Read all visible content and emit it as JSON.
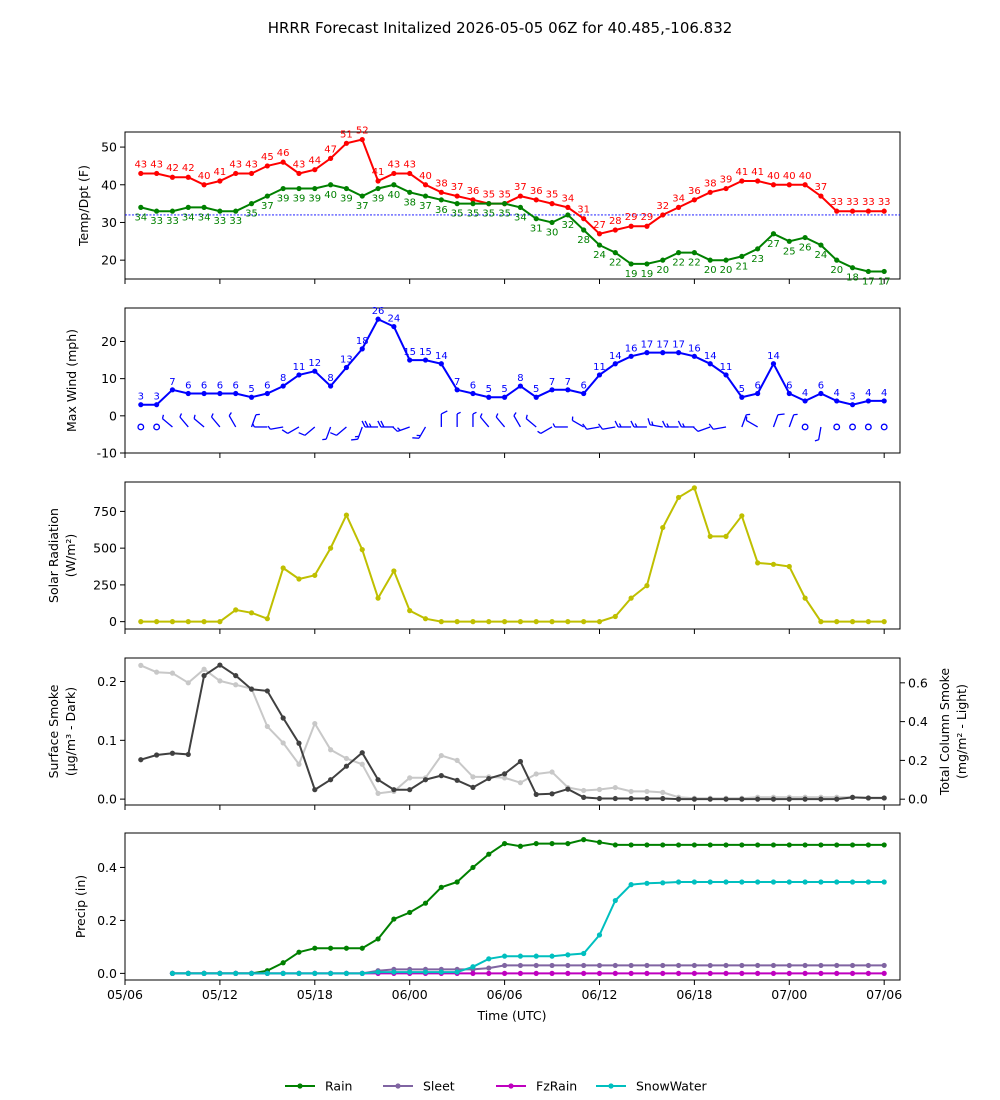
{
  "title": "HRRR Forecast Initalized 2026-05-05 06Z for 40.485,-106.832",
  "x_tick_labels": [
    "05/06",
    "05/12",
    "05/18",
    "06/00",
    "06/06",
    "06/12",
    "06/18",
    "07/00",
    "07/06"
  ],
  "x_axis_label": "Time (UTC)",
  "colors": {
    "temp": "#ff0000",
    "dewpoint": "#008000",
    "wind": "#0000ff",
    "solar": "#bfbf00",
    "smoke_dark": "#404040",
    "smoke_light": "#c8c8c8",
    "rain": "#008000",
    "sleet": "#8064a2",
    "fzrain": "#bf00bf",
    "snow": "#00bfbf"
  },
  "chart_data": [
    {
      "type": "line",
      "name": "temp-dewpoint",
      "ylabel": "Temp/Dpt (F)",
      "ylim": [
        15,
        54
      ],
      "yticks": [
        20,
        30,
        40,
        50
      ],
      "x_hours": [
        1,
        2,
        3,
        4,
        5,
        6,
        7,
        8,
        9,
        10,
        11,
        12,
        13,
        14,
        15,
        16,
        17,
        18,
        19,
        20,
        21,
        22,
        23,
        24,
        25,
        26,
        27,
        28,
        29,
        30,
        31,
        32,
        33,
        34,
        35,
        36,
        37,
        38,
        39,
        40,
        41,
        42,
        43,
        44,
        45,
        46,
        47,
        48
      ],
      "reference_line": 32,
      "series": [
        {
          "name": "Temp",
          "values": [
            43,
            43,
            42,
            42,
            40,
            41,
            43,
            43,
            45,
            46,
            43,
            44,
            47,
            51,
            52,
            41,
            43,
            43,
            40,
            38,
            37,
            36,
            35,
            35,
            37,
            36,
            35,
            34,
            31,
            27,
            28,
            29,
            29,
            32,
            34,
            36,
            38,
            39,
            41,
            41,
            40,
            40,
            40,
            37,
            33,
            33,
            33,
            33
          ]
        },
        {
          "name": "Dewpoint",
          "values": [
            34,
            33,
            33,
            34,
            34,
            33,
            33,
            35,
            37,
            39,
            39,
            39,
            40,
            39,
            37,
            39,
            40,
            38,
            37,
            36,
            35,
            35,
            35,
            35,
            34,
            31,
            30,
            32,
            28,
            24,
            22,
            19,
            19,
            20,
            22,
            22,
            20,
            20,
            21,
            23,
            27,
            25,
            26,
            24,
            20,
            18,
            17,
            17
          ]
        }
      ]
    },
    {
      "type": "line",
      "name": "max-wind",
      "ylabel": "Max Wind (mph)",
      "ylim": [
        -10,
        29
      ],
      "yticks": [
        -10,
        0,
        10,
        20
      ],
      "x_hours": [
        1,
        2,
        3,
        4,
        5,
        6,
        7,
        8,
        9,
        10,
        11,
        12,
        13,
        14,
        15,
        16,
        17,
        18,
        19,
        20,
        21,
        22,
        23,
        24,
        25,
        26,
        27,
        28,
        29,
        30,
        31,
        32,
        33,
        34,
        35,
        36,
        37,
        38,
        39,
        40,
        41,
        42,
        43,
        44,
        45,
        46,
        47,
        48
      ],
      "values": [
        3,
        3,
        7,
        6,
        6,
        6,
        6,
        5,
        6,
        8,
        11,
        12,
        8,
        13,
        18,
        26,
        24,
        15,
        15,
        14,
        7,
        6,
        5,
        5,
        8,
        5,
        7,
        7,
        6,
        11,
        14,
        16,
        17,
        17,
        17,
        16,
        14,
        11,
        5,
        6,
        14,
        6,
        4,
        6,
        4,
        3,
        4,
        4
      ],
      "barb_directions_deg": [
        20,
        300,
        310,
        320,
        310,
        320,
        330,
        20,
        270,
        260,
        240,
        230,
        200,
        230,
        200,
        270,
        270,
        250,
        210,
        0,
        0,
        0,
        320,
        320,
        330,
        310,
        240,
        270,
        300,
        260,
        260,
        270,
        270,
        280,
        270,
        270,
        250,
        260,
        20,
        300,
        20,
        20,
        210,
        190,
        280,
        230,
        20,
        20
      ]
    },
    {
      "type": "line",
      "name": "solar-radiation",
      "ylabel": "Solar Radiation",
      "ylabel_unit": "(W/m²)",
      "ylim": [
        -50,
        950
      ],
      "yticks": [
        0,
        250,
        500,
        750
      ],
      "x_hours": [
        1,
        2,
        3,
        4,
        5,
        6,
        7,
        8,
        9,
        10,
        11,
        12,
        13,
        14,
        15,
        16,
        17,
        18,
        19,
        20,
        21,
        22,
        23,
        24,
        25,
        26,
        27,
        28,
        29,
        30,
        31,
        32,
        33,
        34,
        35,
        36,
        37,
        38,
        39,
        40,
        41,
        42,
        43,
        44,
        45,
        46,
        47,
        48
      ],
      "values": [
        0,
        0,
        0,
        0,
        0,
        0,
        80,
        60,
        20,
        365,
        290,
        315,
        500,
        725,
        490,
        160,
        345,
        75,
        20,
        0,
        0,
        0,
        0,
        0,
        0,
        0,
        0,
        0,
        0,
        0,
        35,
        160,
        245,
        640,
        845,
        910,
        580,
        580,
        720,
        400,
        390,
        375,
        160,
        0,
        0,
        0,
        0,
        0
      ]
    },
    {
      "type": "line",
      "name": "smoke",
      "ylabel": "Surface Smoke",
      "ylabel_unit": "(μg/m³ - Dark)",
      "y2label": "Total Column Smoke",
      "y2label_unit": "(mg/m² - Light)",
      "ylim": [
        -0.01,
        0.24
      ],
      "yticks": [
        0.0,
        0.1,
        0.2
      ],
      "y2lim": [
        -0.03,
        0.728
      ],
      "y2ticks": [
        0.0,
        0.2,
        0.4,
        0.6
      ],
      "x_hours": [
        1,
        2,
        3,
        4,
        5,
        6,
        7,
        8,
        9,
        10,
        11,
        12,
        13,
        14,
        15,
        16,
        17,
        18,
        19,
        20,
        21,
        22,
        23,
        24,
        25,
        26,
        27,
        28,
        29,
        30,
        31,
        32,
        33,
        34,
        35,
        36,
        37,
        38,
        39,
        40,
        41,
        42,
        43,
        44,
        45,
        46,
        47,
        48
      ],
      "series": [
        {
          "name": "Surface Smoke",
          "values": [
            0.067,
            0.075,
            0.078,
            0.076,
            0.21,
            0.228,
            0.21,
            0.187,
            0.184,
            0.138,
            0.095,
            0.016,
            0.033,
            0.056,
            0.079,
            0.033,
            0.016,
            0.016,
            0.033,
            0.04,
            0.032,
            0.02,
            0.035,
            0.043,
            0.064,
            0.008,
            0.009,
            0.017,
            0.003,
            0.001,
            0.001,
            0.001,
            0.001,
            0.001,
            0.0,
            0.0,
            0.0,
            0.0,
            0.0,
            0.0,
            0.0,
            0.0,
            0.0,
            0.0,
            0.0,
            0.003,
            0.002,
            0.002
          ]
        },
        {
          "name": "Total Column Smoke",
          "values": [
            0.69,
            0.655,
            0.65,
            0.6,
            0.67,
            0.61,
            0.59,
            0.57,
            0.375,
            0.29,
            0.18,
            0.39,
            0.255,
            0.21,
            0.18,
            0.03,
            0.04,
            0.11,
            0.11,
            0.225,
            0.2,
            0.115,
            0.115,
            0.11,
            0.085,
            0.13,
            0.14,
            0.06,
            0.045,
            0.05,
            0.06,
            0.04,
            0.04,
            0.035,
            0.01,
            0.005,
            0.005,
            0.005,
            0.005,
            0.01,
            0.01,
            0.01,
            0.01,
            0.01,
            0.01,
            0.01,
            0.005,
            0.005
          ]
        }
      ]
    },
    {
      "type": "line",
      "name": "precip",
      "ylabel": "Precip (in)",
      "ylim": [
        -0.025,
        0.53
      ],
      "yticks": [
        0.0,
        0.2,
        0.4
      ],
      "x_hours": [
        3,
        4,
        5,
        6,
        7,
        8,
        9,
        10,
        11,
        12,
        13,
        14,
        15,
        16,
        17,
        18,
        19,
        20,
        21,
        22,
        23,
        24,
        25,
        26,
        27,
        28,
        29,
        30,
        31,
        32,
        33,
        34,
        35,
        36,
        37,
        38,
        39,
        40,
        41,
        42,
        43,
        44,
        45,
        46,
        47,
        48
      ],
      "series": [
        {
          "name": "Rain",
          "values": [
            0,
            0,
            0,
            0,
            0,
            0,
            0.01,
            0.04,
            0.08,
            0.095,
            0.095,
            0.095,
            0.095,
            0.13,
            0.205,
            0.23,
            0.265,
            0.325,
            0.345,
            0.4,
            0.45,
            0.49,
            0.48,
            0.49,
            0.49,
            0.49,
            0.505,
            0.495,
            0.485,
            0.485,
            0.485,
            0.485,
            0.485,
            0.485,
            0.485,
            0.485,
            0.485,
            0.485,
            0.485,
            0.485,
            0.485,
            0.485,
            0.485,
            0.485,
            0.485,
            0.485
          ]
        },
        {
          "name": "Sleet",
          "values": [
            0,
            0,
            0,
            0,
            0,
            0,
            0,
            0,
            0,
            0,
            0,
            0,
            0,
            0.01,
            0.015,
            0.015,
            0.015,
            0.015,
            0.015,
            0.015,
            0.02,
            0.03,
            0.03,
            0.03,
            0.03,
            0.03,
            0.03,
            0.03,
            0.03,
            0.03,
            0.03,
            0.03,
            0.03,
            0.03,
            0.03,
            0.03,
            0.03,
            0.03,
            0.03,
            0.03,
            0.03,
            0.03,
            0.03,
            0.03,
            0.03,
            0.03
          ]
        },
        {
          "name": "FzRain",
          "values": [
            0,
            0,
            0,
            0,
            0,
            0,
            0,
            0,
            0,
            0,
            0,
            0,
            0,
            0,
            0,
            0,
            0,
            0,
            0,
            0,
            0,
            0,
            0,
            0,
            0,
            0,
            0,
            0,
            0,
            0,
            0,
            0,
            0,
            0,
            0,
            0,
            0,
            0,
            0,
            0,
            0,
            0,
            0,
            0,
            0,
            0
          ]
        },
        {
          "name": "SnowWater",
          "values": [
            0,
            0,
            0,
            0,
            0,
            0,
            0,
            0,
            0,
            0,
            0,
            0,
            0,
            0.005,
            0.005,
            0.005,
            0.005,
            0.005,
            0.005,
            0.025,
            0.055,
            0.065,
            0.065,
            0.065,
            0.065,
            0.07,
            0.075,
            0.145,
            0.275,
            0.335,
            0.34,
            0.342,
            0.345,
            0.345,
            0.345,
            0.345,
            0.345,
            0.345,
            0.345,
            0.345,
            0.345,
            0.345,
            0.345,
            0.345,
            0.345,
            0.345
          ]
        }
      ]
    }
  ],
  "legend": {
    "placement": "bottom-center",
    "items": [
      {
        "label": "Rain",
        "color": "#008000"
      },
      {
        "label": "Sleet",
        "color": "#8064a2"
      },
      {
        "label": "FzRain",
        "color": "#bf00bf"
      },
      {
        "label": "SnowWater",
        "color": "#00bfbf"
      }
    ]
  }
}
